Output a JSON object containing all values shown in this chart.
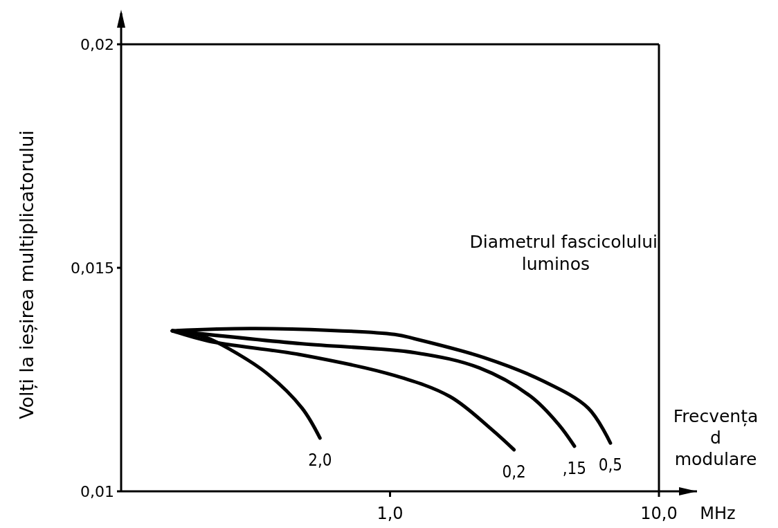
{
  "chart_data": {
    "type": "line",
    "ylabel": "Volți la ieșirea multiplicatorului",
    "xlabel": "MHz",
    "legend_title": "Diametrul fascicolului luminos",
    "annotations": [
      "Frecvența d modulare"
    ],
    "log": "x",
    "grid": false,
    "line_style": "solid",
    "marker": "none",
    "xlim": [
      0.1,
      10
    ],
    "xticks": [
      {
        "value": 1,
        "label": "1,0"
      },
      {
        "value": 10,
        "label": "10,0"
      }
    ],
    "ylim": [
      0.01,
      0.02
    ],
    "yticks": [
      {
        "value": 0.01,
        "label": "0,01"
      },
      {
        "value": 0.015,
        "label": "0,015"
      },
      {
        "value": 0.02,
        "label": "0,02"
      }
    ],
    "series": [
      {
        "name": "2,0",
        "color": "#000000",
        "x": [
          0.155,
          0.205,
          0.26,
          0.35,
          0.471,
          0.549
        ],
        "values": [
          0.01359,
          0.01345,
          0.01314,
          0.01263,
          0.01186,
          0.01119
        ]
      },
      {
        "name": "0,2",
        "color": "#000000",
        "x": [
          0.155,
          0.212,
          0.471,
          1.04,
          1.67,
          2.38,
          2.89
        ],
        "values": [
          0.01359,
          0.01336,
          0.01305,
          0.01259,
          0.01212,
          0.01139,
          0.01093
        ]
      },
      {
        "name": ",15",
        "color": "#000000",
        "x": [
          0.155,
          0.471,
          1.24,
          2.15,
          3.34,
          4.23,
          4.85
        ],
        "values": [
          0.01359,
          0.0133,
          0.0131,
          0.01276,
          0.01212,
          0.0115,
          0.01101
        ]
      },
      {
        "name": "0,5",
        "color": "#000000",
        "x": [
          0.155,
          0.316,
          1.04,
          1.24,
          2.24,
          3.67,
          5.46,
          6.6
        ],
        "values": [
          0.01359,
          0.01364,
          0.01351,
          0.01341,
          0.01299,
          0.01248,
          0.01186,
          0.01108
        ]
      }
    ]
  }
}
